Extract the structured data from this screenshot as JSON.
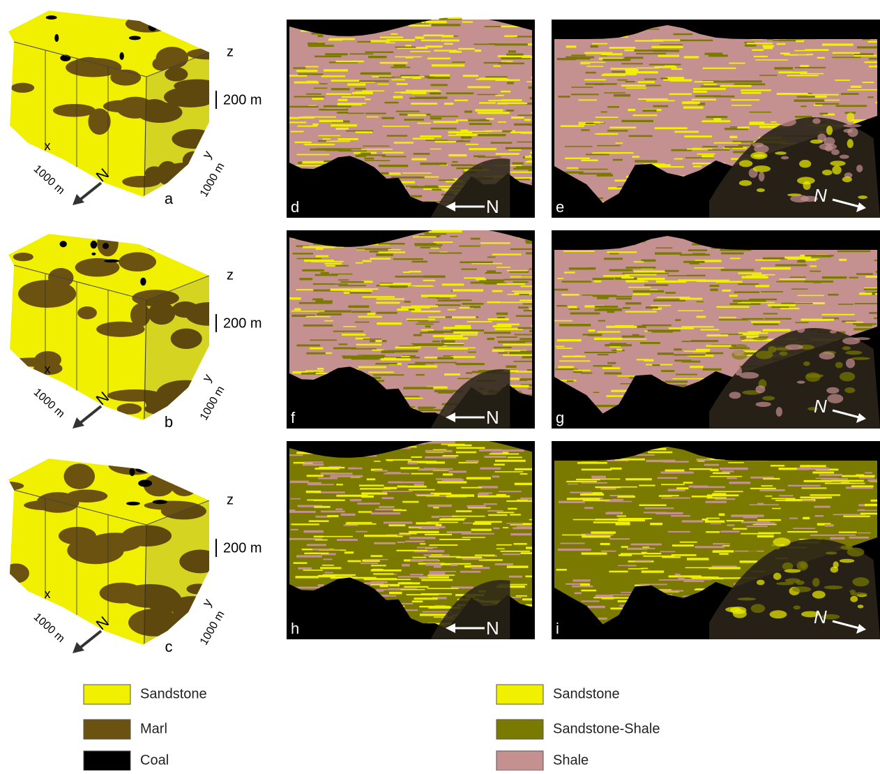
{
  "left_panels": [
    {
      "letter": "a",
      "z": "z",
      "scale_z": "200 m",
      "x": "x",
      "y": "y",
      "scale_x": "1000 m",
      "scale_y": "1000 m",
      "north": "N"
    },
    {
      "letter": "b",
      "z": "z",
      "scale_z": "200 m",
      "x": "x",
      "y": "y",
      "scale_x": "1000 m",
      "scale_y": "1000 m",
      "north": "N"
    },
    {
      "letter": "c",
      "z": "z",
      "scale_z": "200 m",
      "x": "x",
      "y": "y",
      "scale_x": "1000 m",
      "scale_y": "1000 m",
      "north": "N"
    }
  ],
  "middle_panels": [
    {
      "letter": "d",
      "north": "N"
    },
    {
      "letter": "f",
      "north": "N"
    },
    {
      "letter": "h",
      "north": "N"
    }
  ],
  "right_panels": [
    {
      "letter": "e",
      "north": "N"
    },
    {
      "letter": "g",
      "north": "N"
    },
    {
      "letter": "i",
      "north": "N"
    }
  ],
  "legend_left": [
    {
      "label": "Sandstone",
      "color": "#f0f000"
    },
    {
      "label": "Marl",
      "color": "#6b5210"
    },
    {
      "label": "Coal",
      "color": "#000000"
    }
  ],
  "legend_right": [
    {
      "label": "Sandstone",
      "color": "#f0f000"
    },
    {
      "label": "Sandstone-Shale",
      "color": "#7a7a00"
    },
    {
      "label": "Shale",
      "color": "#c49090"
    }
  ]
}
